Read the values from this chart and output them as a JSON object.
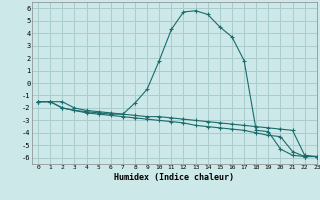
{
  "xlabel": "Humidex (Indice chaleur)",
  "ylabel": "",
  "background_color": "#cce8e8",
  "grid_color": "#aacccc",
  "line_color": "#1a6b6b",
  "xlim": [
    -0.5,
    23
  ],
  "ylim": [
    -6.5,
    6.5
  ],
  "xticks": [
    0,
    1,
    2,
    3,
    4,
    5,
    6,
    7,
    8,
    9,
    10,
    11,
    12,
    13,
    14,
    15,
    16,
    17,
    18,
    19,
    20,
    21,
    22,
    23
  ],
  "yticks": [
    -6,
    -5,
    -4,
    -3,
    -2,
    -1,
    0,
    1,
    2,
    3,
    4,
    5,
    6
  ],
  "series1_x": [
    0,
    1,
    2,
    3,
    4,
    5,
    6,
    7,
    8,
    9,
    10,
    11,
    12,
    13,
    14,
    15,
    16,
    17,
    18,
    19,
    20,
    21,
    22,
    23
  ],
  "series1_y": [
    -1.5,
    -1.5,
    -1.5,
    -2.0,
    -2.2,
    -2.3,
    -2.4,
    -2.5,
    -1.6,
    -0.5,
    1.8,
    4.3,
    5.7,
    5.8,
    5.5,
    4.5,
    3.7,
    1.8,
    -3.8,
    -3.9,
    -5.3,
    -5.8,
    -5.9,
    -5.9
  ],
  "series2_x": [
    0,
    1,
    2,
    3,
    4,
    5,
    6,
    7,
    8,
    9,
    10,
    11,
    12,
    13,
    14,
    15,
    16,
    17,
    18,
    19,
    20,
    21,
    22,
    23
  ],
  "series2_y": [
    -1.5,
    -1.5,
    -2.0,
    -2.2,
    -2.3,
    -2.4,
    -2.5,
    -2.5,
    -2.6,
    -2.7,
    -2.7,
    -2.8,
    -2.9,
    -3.0,
    -3.1,
    -3.2,
    -3.3,
    -3.4,
    -3.5,
    -3.6,
    -3.7,
    -3.8,
    -5.8,
    -5.9
  ],
  "series3_x": [
    0,
    1,
    2,
    3,
    4,
    5,
    6,
    7,
    8,
    9,
    10,
    11,
    12,
    13,
    14,
    15,
    16,
    17,
    18,
    19,
    20,
    21,
    22,
    23
  ],
  "series3_y": [
    -1.5,
    -1.5,
    -2.0,
    -2.2,
    -2.4,
    -2.5,
    -2.6,
    -2.7,
    -2.8,
    -2.9,
    -3.0,
    -3.1,
    -3.2,
    -3.4,
    -3.5,
    -3.6,
    -3.7,
    -3.8,
    -4.0,
    -4.2,
    -4.3,
    -5.5,
    -5.9,
    -5.9
  ]
}
